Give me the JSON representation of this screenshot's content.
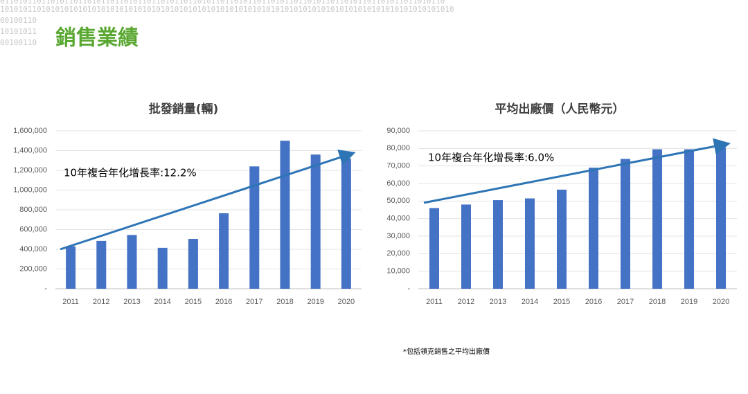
{
  "title": "銷售業績",
  "decoration": [
    "0110101101101011011010110110101101101011011010110110101101101011011010110110101101101011011010110",
    "101010110101010101010101010101010101010101010101010101010101010101010101010101010101010101010101010",
    "00100110",
    "10101011",
    "00100110"
  ],
  "footnote": "*包括領克銷售之平均出廠價",
  "chart_data": [
    {
      "type": "bar",
      "title": "批發銷量(輛)",
      "color": "#4472c4",
      "categories": [
        "2011",
        "2012",
        "2013",
        "2014",
        "2015",
        "2016",
        "2017",
        "2018",
        "2019",
        "2020"
      ],
      "values": [
        430000,
        485000,
        545000,
        415000,
        505000,
        765000,
        1240000,
        1500000,
        1360000,
        1320000
      ],
      "ylim": [
        0,
        1600000
      ],
      "yticks": [
        {
          "value": 0,
          "label": "-"
        },
        {
          "value": 200000,
          "label": "200,000"
        },
        {
          "value": 400000,
          "label": "400,000"
        },
        {
          "value": 600000,
          "label": "600,000"
        },
        {
          "value": 800000,
          "label": "800,000"
        },
        {
          "value": 1000000,
          "label": "1,000,000"
        },
        {
          "value": 1200000,
          "label": "1,200,000"
        },
        {
          "value": 1400000,
          "label": "1,400,000"
        },
        {
          "value": 1600000,
          "label": "1,600,000"
        }
      ],
      "grid": true,
      "trend": [
        400000,
        1370000
      ],
      "trend_color": "#2e75b6",
      "annotation": "10年複合年化增長率:12.2%"
    },
    {
      "type": "bar",
      "title": "平均出廠價（人民幣元）",
      "color": "#4472c4",
      "categories": [
        "2011",
        "2012",
        "2013",
        "2014",
        "2015",
        "2016",
        "2017",
        "2018",
        "2019",
        "2020"
      ],
      "values": [
        46000,
        48000,
        50500,
        51500,
        56500,
        69000,
        74000,
        79500,
        79500,
        80500
      ],
      "ylim": [
        0,
        90000
      ],
      "yticks": [
        {
          "value": 0,
          "label": "-"
        },
        {
          "value": 10000,
          "label": "10,000"
        },
        {
          "value": 20000,
          "label": "20,000"
        },
        {
          "value": 30000,
          "label": "30,000"
        },
        {
          "value": 40000,
          "label": "40,000"
        },
        {
          "value": 50000,
          "label": "50,000"
        },
        {
          "value": 60000,
          "label": "60,000"
        },
        {
          "value": 70000,
          "label": "70,000"
        },
        {
          "value": 80000,
          "label": "80,000"
        },
        {
          "value": 90000,
          "label": "90,000"
        }
      ],
      "grid": true,
      "trend": [
        49000,
        82500
      ],
      "trend_color": "#2e75b6",
      "annotation": "10年複合年化增長率:6.0%"
    }
  ]
}
